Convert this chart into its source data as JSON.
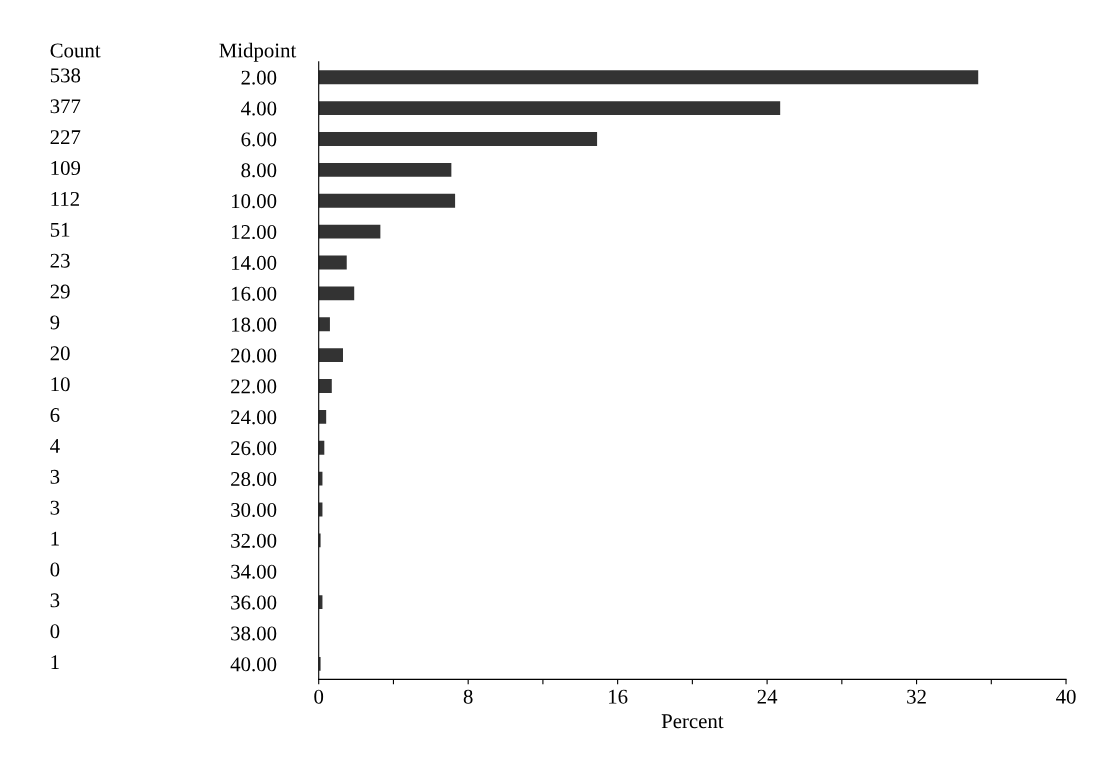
{
  "chart_data": {
    "type": "bar",
    "orientation": "horizontal",
    "xlabel": "Percent",
    "ylabel": "Midpoint",
    "annotations": [
      "Count",
      "538",
      "377",
      "227",
      "109",
      "112",
      "51",
      "23",
      "29",
      "9",
      "20",
      "10",
      "6",
      "4",
      "3",
      "3",
      "1",
      "0",
      "3",
      "0",
      "1"
    ],
    "categories": [
      "2.00",
      "4.00",
      "6.00",
      "8.00",
      "10.00",
      "12.00",
      "14.00",
      "16.00",
      "18.00",
      "20.00",
      "22.00",
      "24.00",
      "26.00",
      "28.00",
      "30.00",
      "32.00",
      "34.00",
      "36.00",
      "38.00",
      "40.00"
    ],
    "values": [
      35.3,
      24.7,
      14.9,
      7.1,
      7.3,
      3.3,
      1.5,
      1.9,
      0.6,
      1.3,
      0.7,
      0.4,
      0.3,
      0.2,
      0.2,
      0.1,
      0,
      0.2,
      0,
      0.1
    ],
    "color": "#333333",
    "xlim": [
      0,
      40
    ],
    "xticks": [
      0,
      {
        "value": 4,
        "label": null
      },
      8,
      {
        "value": 12,
        "label": null
      },
      16,
      {
        "value": 20,
        "label": null
      },
      24,
      {
        "value": 28,
        "label": null
      },
      32,
      {
        "value": 36,
        "label": null
      },
      40
    ],
    "grid": false,
    "legend": false
  }
}
